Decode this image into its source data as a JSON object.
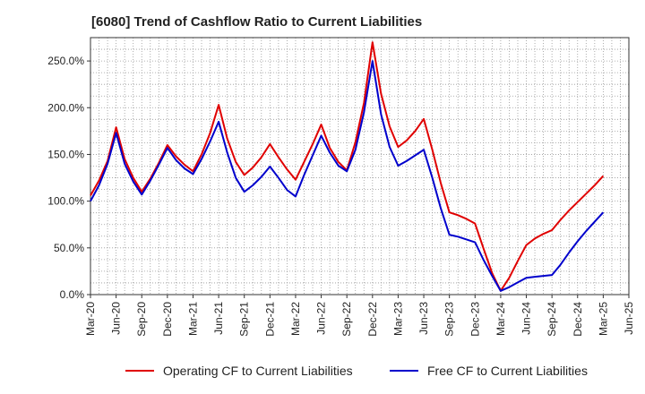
{
  "chart_data": {
    "type": "line",
    "title": "[6080]  Trend of Cashflow Ratio to Current Liabilities",
    "xlabel": "",
    "ylabel": "",
    "ylim": [
      0,
      275
    ],
    "yticks": [
      "0.0%",
      "50.0%",
      "100.0%",
      "150.0%",
      "200.0%",
      "250.0%"
    ],
    "ytick_values": [
      0,
      50,
      100,
      150,
      200,
      250
    ],
    "x_ticks": [
      "Mar-20",
      "Jun-20",
      "Sep-20",
      "Dec-20",
      "Mar-21",
      "Jun-21",
      "Sep-21",
      "Dec-21",
      "Mar-22",
      "Jun-22",
      "Sep-22",
      "Dec-22",
      "Mar-23",
      "Jun-23",
      "Sep-23",
      "Dec-23",
      "Mar-24",
      "Jun-24",
      "Sep-24",
      "Dec-24",
      "Mar-25",
      "Jun-25"
    ],
    "x": [
      "2020-03",
      "2020-04",
      "2020-05",
      "2020-06",
      "2020-07",
      "2020-08",
      "2020-09",
      "2020-10",
      "2020-11",
      "2020-12",
      "2021-01",
      "2021-02",
      "2021-03",
      "2021-04",
      "2021-05",
      "2021-06",
      "2021-07",
      "2021-08",
      "2021-09",
      "2021-10",
      "2021-11",
      "2021-12",
      "2022-01",
      "2022-02",
      "2022-03",
      "2022-04",
      "2022-05",
      "2022-06",
      "2022-07",
      "2022-08",
      "2022-09",
      "2022-10",
      "2022-11",
      "2022-12",
      "2023-01",
      "2023-02",
      "2023-03",
      "2023-04",
      "2023-05",
      "2023-06",
      "2023-07",
      "2023-08",
      "2023-09",
      "2023-10",
      "2023-11",
      "2023-12",
      "2024-01",
      "2024-02",
      "2024-03",
      "2024-04",
      "2024-05",
      "2024-06",
      "2024-07",
      "2024-08",
      "2024-09",
      "2024-10",
      "2024-11",
      "2024-12",
      "2025-01",
      "2025-02",
      "2025-03"
    ],
    "grid": true,
    "legend": "bottom",
    "series": [
      {
        "name": "Operating CF to Current Liabilities",
        "color": "#e00000",
        "values": [
          106,
          122,
          143,
          179,
          145,
          125,
          110,
          124,
          141,
          160,
          148,
          139,
          132,
          150,
          173,
          203,
          167,
          142,
          128,
          136,
          147,
          161,
          147,
          134,
          123,
          142,
          161,
          182,
          157,
          142,
          133,
          163,
          205,
          270,
          215,
          180,
          158,
          165,
          175,
          188,
          155,
          119,
          88,
          85,
          81,
          76,
          49,
          23,
          4,
          18,
          36,
          53,
          60,
          65,
          69,
          80,
          90,
          99,
          108,
          117,
          127
        ]
      },
      {
        "name": "Free CF to Current Liabilities",
        "color": "#0000cc",
        "values": [
          100,
          117,
          140,
          173,
          140,
          121,
          107,
          122,
          139,
          157,
          144,
          135,
          129,
          145,
          164,
          185,
          152,
          125,
          110,
          117,
          126,
          137,
          125,
          112,
          105,
          128,
          149,
          170,
          152,
          138,
          132,
          155,
          195,
          250,
          193,
          158,
          138,
          143,
          149,
          155,
          125,
          92,
          64,
          62,
          59,
          56,
          37,
          20,
          4,
          8,
          13,
          18,
          19,
          20,
          21,
          32,
          45,
          57,
          68,
          78,
          88
        ]
      }
    ]
  }
}
